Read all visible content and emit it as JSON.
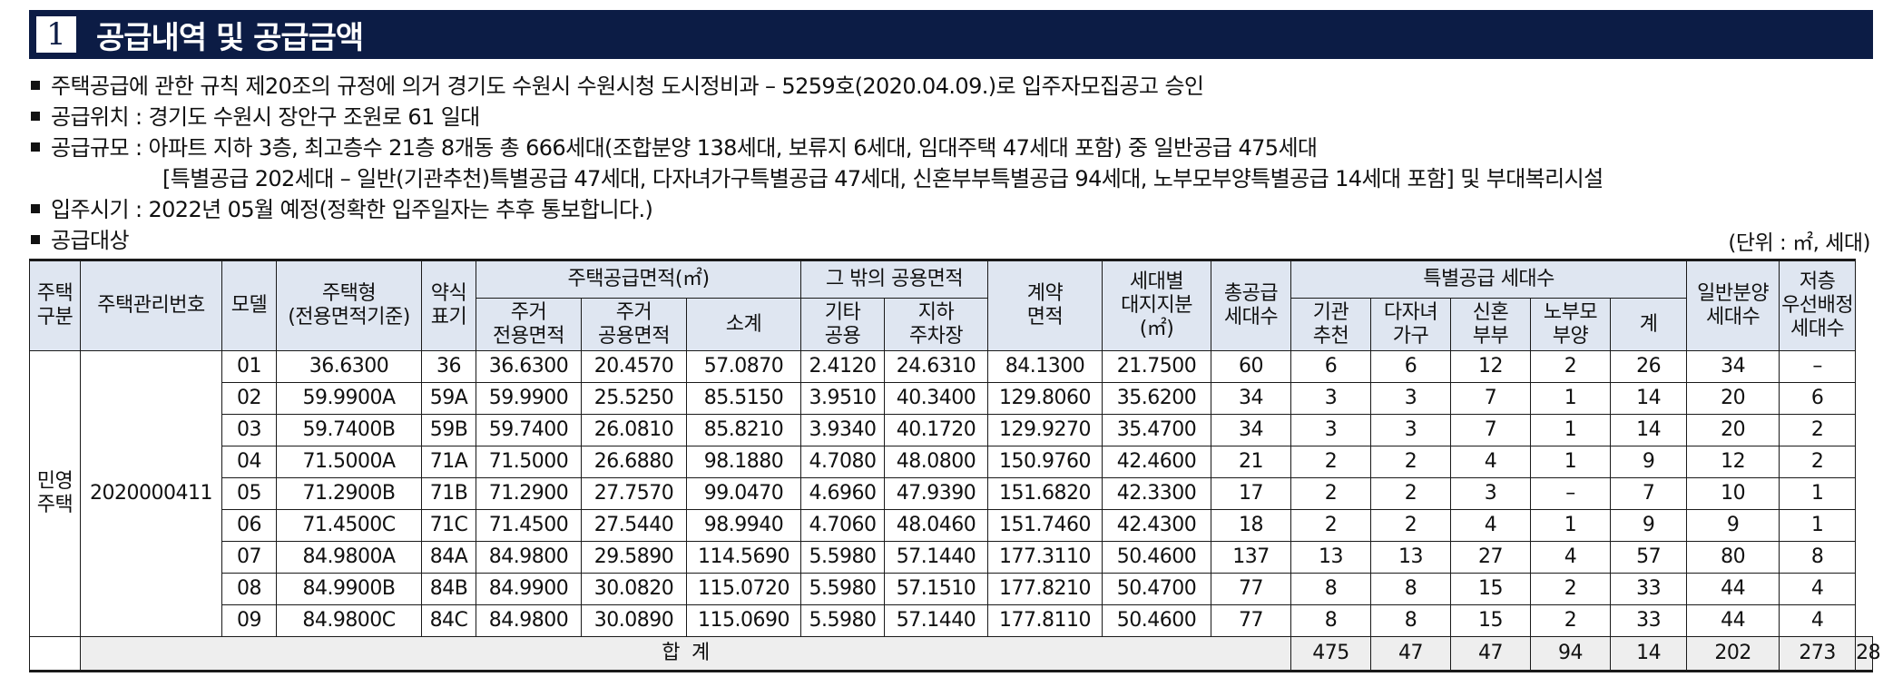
{
  "header": {
    "number": "1",
    "title": "공급내역 및 공급금액"
  },
  "info": {
    "line1": "주택공급에 관한 규칙 제20조의 규정에 의거 경기도 수원시 수원시청 도시정비과 – 5259호(2020.04.09.)로 입주자모집공고 승인",
    "line2": "공급위치 : 경기도 수원시 장안구 조원로 61 일대",
    "line3": "공급규모 : 아파트 지하 3층, 최고층수 21층 8개동 총 666세대(조합분양 138세대, 보류지 6세대, 임대주택 47세대 포함) 중 일반공급 475세대",
    "line3b": "[특별공급 202세대 – 일반(기관추천)특별공급 47세대, 다자녀가구특별공급 47세대, 신혼부부특별공급 94세대, 노부모부양특별공급 14세대 포함] 및 부대복리시설",
    "line4": "입주시기 : 2022년 05월 예정(정확한 입주일자는 추후 통보합니다.)",
    "line5": "공급대상",
    "unit": "(단위 : ㎡, 세대)"
  },
  "table": {
    "headers": {
      "type": "주택\n구분",
      "code": "주택관리번호",
      "model": "모델",
      "housing_type": "주택형\n(전용면적기준)",
      "abbr": "약식\n표기",
      "supply_area": "주택공급면적(㎡)",
      "exclusive": "주거\n전용면적",
      "common": "주거\n공용면적",
      "subtotal": "소계",
      "other_common": "그 밖의 공용면적",
      "other": "기타\n공용",
      "parking": "지하\n주차장",
      "contract": "계약\n면적",
      "land": "세대별\n대지지분\n(㎡)",
      "total_supply": "총공급\n세대수",
      "special": "특별공급 세대수",
      "inst": "기관\n추천",
      "multi": "다자녀\n가구",
      "newlywed": "신혼\n부부",
      "elderly": "노부모\n부양",
      "sum": "계",
      "general": "일반분양\n세대수",
      "low_floor": "저층\n우선배정\n세대수"
    },
    "type_label": "민영\n주택",
    "code_value": "2020000411",
    "rows": [
      [
        "01",
        "36.6300",
        "36",
        "36.6300",
        "20.4570",
        "57.0870",
        "2.4120",
        "24.6310",
        "84.1300",
        "21.7500",
        "60",
        "6",
        "6",
        "12",
        "2",
        "26",
        "34",
        "–"
      ],
      [
        "02",
        "59.9900A",
        "59A",
        "59.9900",
        "25.5250",
        "85.5150",
        "3.9510",
        "40.3400",
        "129.8060",
        "35.6200",
        "34",
        "3",
        "3",
        "7",
        "1",
        "14",
        "20",
        "6"
      ],
      [
        "03",
        "59.7400B",
        "59B",
        "59.7400",
        "26.0810",
        "85.8210",
        "3.9340",
        "40.1720",
        "129.9270",
        "35.4700",
        "34",
        "3",
        "3",
        "7",
        "1",
        "14",
        "20",
        "2"
      ],
      [
        "04",
        "71.5000A",
        "71A",
        "71.5000",
        "26.6880",
        "98.1880",
        "4.7080",
        "48.0800",
        "150.9760",
        "42.4600",
        "21",
        "2",
        "2",
        "4",
        "1",
        "9",
        "12",
        "2"
      ],
      [
        "05",
        "71.2900B",
        "71B",
        "71.2900",
        "27.7570",
        "99.0470",
        "4.6960",
        "47.9390",
        "151.6820",
        "42.3300",
        "17",
        "2",
        "2",
        "3",
        "–",
        "7",
        "10",
        "1"
      ],
      [
        "06",
        "71.4500C",
        "71C",
        "71.4500",
        "27.5440",
        "98.9940",
        "4.7060",
        "48.0460",
        "151.7460",
        "42.4300",
        "18",
        "2",
        "2",
        "4",
        "1",
        "9",
        "9",
        "1"
      ],
      [
        "07",
        "84.9800A",
        "84A",
        "84.9800",
        "29.5890",
        "114.5690",
        "5.5980",
        "57.1440",
        "177.3110",
        "50.4600",
        "137",
        "13",
        "13",
        "27",
        "4",
        "57",
        "80",
        "8"
      ],
      [
        "08",
        "84.9900B",
        "84B",
        "84.9900",
        "30.0820",
        "115.0720",
        "5.5980",
        "57.1510",
        "177.8210",
        "50.4700",
        "77",
        "8",
        "8",
        "15",
        "2",
        "33",
        "44",
        "4"
      ],
      [
        "09",
        "84.9800C",
        "84C",
        "84.9800",
        "30.0890",
        "115.0690",
        "5.5980",
        "57.1440",
        "177.8110",
        "50.4600",
        "77",
        "8",
        "8",
        "15",
        "2",
        "33",
        "44",
        "4"
      ]
    ],
    "total_label": "합  계",
    "totals": [
      "475",
      "47",
      "47",
      "94",
      "14",
      "202",
      "273",
      "28"
    ]
  }
}
